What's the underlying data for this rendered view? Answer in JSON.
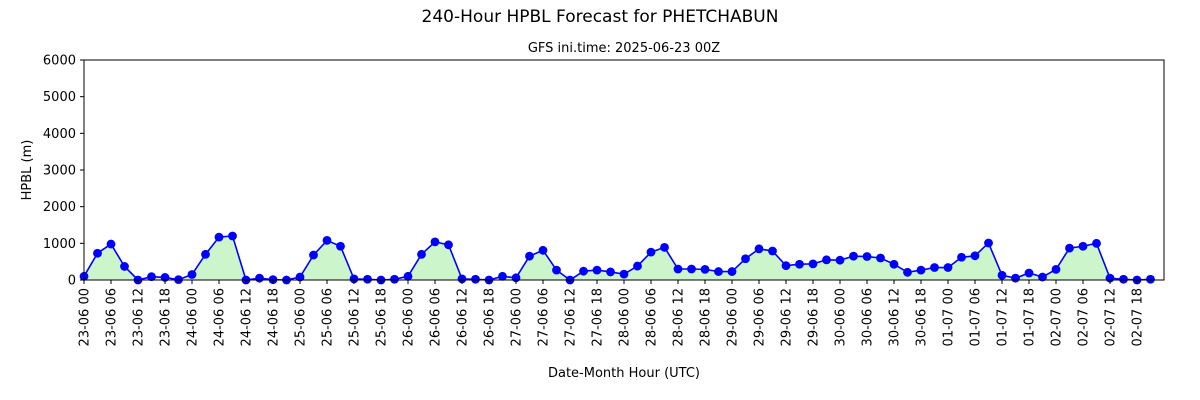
{
  "chart_data": {
    "type": "line",
    "title": "240-Hour HPBL Forecast for PHETCHABUN",
    "subtitle": "GFS ini.time: 2025-06-23 00Z",
    "xlabel": "Date-Month Hour (UTC)",
    "ylabel": "HPBL (m)",
    "ylim": [
      0,
      6000
    ],
    "yticks": [
      0,
      1000,
      2000,
      3000,
      4000,
      5000,
      6000
    ],
    "x_step_hours": 3,
    "xtick_every_hours": 6,
    "x_labels": [
      "23-06 00",
      "23-06 06",
      "23-06 12",
      "23-06 18",
      "24-06 00",
      "24-06 06",
      "24-06 12",
      "24-06 18",
      "25-06 00",
      "25-06 06",
      "25-06 12",
      "25-06 18",
      "26-06 00",
      "26-06 06",
      "26-06 12",
      "26-06 18",
      "27-06 00",
      "27-06 06",
      "27-06 12",
      "27-06 18",
      "28-06 00",
      "28-06 06",
      "28-06 12",
      "28-06 18",
      "29-06 00",
      "29-06 06",
      "29-06 12",
      "29-06 18",
      "30-06 00",
      "30-06 06",
      "30-06 12",
      "30-06 18",
      "01-07 00",
      "01-07 06",
      "01-07 12",
      "01-07 18",
      "02-07 00",
      "02-07 06",
      "02-07 12",
      "02-07 18"
    ],
    "values": [
      100,
      730,
      980,
      370,
      0,
      90,
      70,
      10,
      150,
      700,
      1170,
      1200,
      0,
      50,
      10,
      0,
      80,
      680,
      1080,
      920,
      30,
      20,
      0,
      20,
      100,
      700,
      1040,
      960,
      30,
      20,
      0,
      100,
      60,
      650,
      810,
      270,
      0,
      240,
      270,
      220,
      160,
      380,
      760,
      890,
      300,
      300,
      290,
      230,
      230,
      580,
      850,
      790,
      390,
      430,
      440,
      550,
      540,
      650,
      640,
      600,
      430,
      210,
      270,
      340,
      340,
      620,
      660,
      1010,
      130,
      50,
      190,
      80,
      290,
      870,
      920,
      1000,
      50,
      20,
      0,
      20
    ],
    "line_color": "#0000ff",
    "fill_color": "#ccf5cc",
    "grid": false
  }
}
